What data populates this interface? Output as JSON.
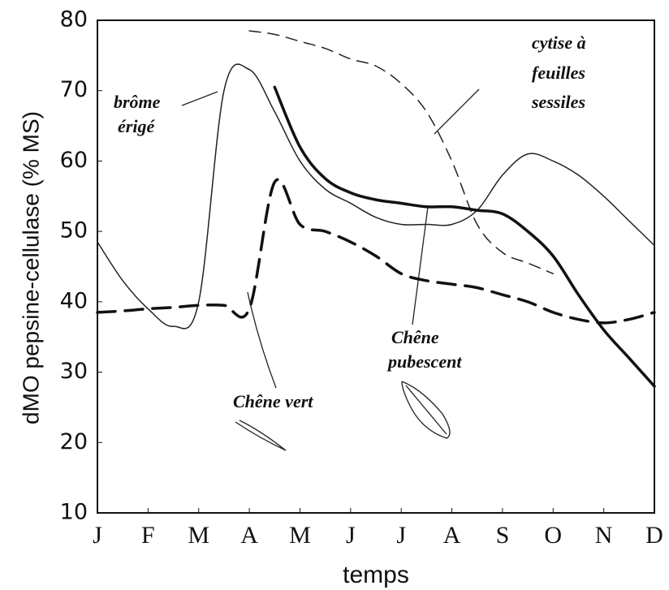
{
  "chart_data": {
    "type": "line",
    "ylabel": "dMO pepsine-cellulase (% MS)",
    "xlabel": "temps",
    "x": [
      0,
      0.5,
      1,
      1.5,
      2,
      2.5,
      3,
      3.5,
      4,
      4.5,
      5,
      5.5,
      6,
      6.5,
      7,
      7.5,
      8,
      8.5,
      9,
      9.5,
      10,
      10.5,
      11
    ],
    "xlim": [
      0,
      11
    ],
    "xticks": [
      {
        "value": 0,
        "label": "J"
      },
      {
        "value": 1,
        "label": "F"
      },
      {
        "value": 2,
        "label": "M"
      },
      {
        "value": 3,
        "label": "A"
      },
      {
        "value": 4,
        "label": "M"
      },
      {
        "value": 5,
        "label": "J"
      },
      {
        "value": 6,
        "label": "J"
      },
      {
        "value": 7,
        "label": "A"
      },
      {
        "value": 8,
        "label": "S"
      },
      {
        "value": 9,
        "label": "O"
      },
      {
        "value": 10,
        "label": "N"
      },
      {
        "value": 11,
        "label": "D"
      }
    ],
    "ylim": [
      10,
      80
    ],
    "yticks": [
      10,
      20,
      30,
      40,
      50,
      60,
      70,
      80
    ],
    "series": [
      {
        "name": [
          "brôme",
          "érigé"
        ],
        "color": "#222",
        "width": 1.5,
        "dash": "none",
        "values": [
          48.5,
          43,
          39,
          36.5,
          40,
          70,
          73,
          67,
          60,
          56,
          54,
          52,
          51,
          51,
          51,
          53,
          58,
          61,
          60,
          58,
          55,
          51.5,
          48
        ]
      },
      {
        "name": [
          "cytise à",
          "feuilles",
          "sessiles"
        ],
        "color": "#222",
        "width": 1.5,
        "dash": "14 9",
        "values": [
          null,
          null,
          null,
          null,
          null,
          null,
          78.5,
          78,
          77,
          76,
          74.5,
          73.5,
          71,
          67,
          60,
          51,
          47,
          45.5,
          44,
          null,
          null,
          null,
          null
        ]
      },
      {
        "name": [
          "Chêne",
          "pubescent"
        ],
        "color": "#111",
        "width": 3.5,
        "dash": "none",
        "values": [
          null,
          null,
          null,
          null,
          null,
          null,
          null,
          70.5,
          62,
          57.5,
          55.5,
          54.5,
          54,
          53.5,
          53.5,
          53,
          52.5,
          50,
          46.5,
          41,
          36,
          32,
          28
        ]
      },
      {
        "name": [
          "Chêne vert"
        ],
        "color": "#111",
        "width": 3.5,
        "dash": "22 12",
        "values": [
          38.5,
          38.7,
          39,
          39.2,
          39.5,
          39.5,
          39,
          57,
          51,
          50,
          48.5,
          46.5,
          44,
          43,
          42.5,
          42,
          41,
          40,
          38.5,
          37.5,
          37,
          37.5,
          38.5
        ]
      }
    ]
  }
}
